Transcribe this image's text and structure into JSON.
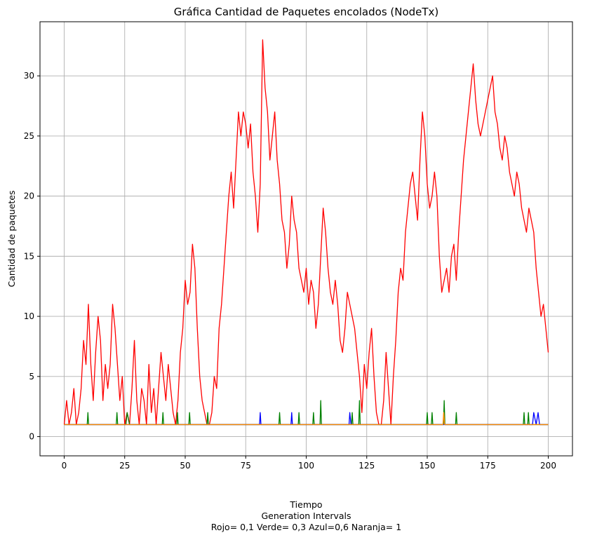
{
  "chart_data": {
    "type": "line",
    "title": "Gráfica Cantidad de Paquetes encolados (NodeTx)",
    "xlabel_lines": [
      "Tiempo",
      "Generation Intervals",
      "Rojo= 0,1  Verde= 0,3  Azul=0,6  Naranja= 1"
    ],
    "ylabel": "Cantidad de paquetes",
    "xlim": [
      -10,
      210
    ],
    "ylim": [
      -1.6,
      34.5
    ],
    "xticks": [
      0,
      25,
      50,
      75,
      100,
      125,
      150,
      175,
      200
    ],
    "yticks": [
      0,
      5,
      10,
      15,
      20,
      25,
      30
    ],
    "grid": true,
    "series": [
      {
        "color": "#ff0000",
        "points": [
          [
            0,
            1
          ],
          [
            1,
            3
          ],
          [
            2,
            1
          ],
          [
            3,
            2
          ],
          [
            4,
            4
          ],
          [
            5,
            1
          ],
          [
            6,
            2
          ],
          [
            7,
            4
          ],
          [
            8,
            8
          ],
          [
            9,
            6
          ],
          [
            10,
            11
          ],
          [
            11,
            6
          ],
          [
            12,
            3
          ],
          [
            13,
            7
          ],
          [
            14,
            10
          ],
          [
            15,
            8
          ],
          [
            16,
            3
          ],
          [
            17,
            6
          ],
          [
            18,
            4
          ],
          [
            19,
            6
          ],
          [
            20,
            11
          ],
          [
            21,
            9
          ],
          [
            22,
            6
          ],
          [
            23,
            3
          ],
          [
            24,
            5
          ],
          [
            25,
            1
          ],
          [
            26,
            2
          ],
          [
            27,
            1
          ],
          [
            28,
            4
          ],
          [
            29,
            8
          ],
          [
            30,
            3
          ],
          [
            31,
            1
          ],
          [
            32,
            4
          ],
          [
            33,
            3
          ],
          [
            34,
            1
          ],
          [
            35,
            6
          ],
          [
            36,
            2
          ],
          [
            37,
            4
          ],
          [
            38,
            1
          ],
          [
            39,
            4
          ],
          [
            40,
            7
          ],
          [
            41,
            5
          ],
          [
            42,
            3
          ],
          [
            43,
            6
          ],
          [
            44,
            4
          ],
          [
            45,
            2
          ],
          [
            46,
            1
          ],
          [
            47,
            3
          ],
          [
            48,
            7
          ],
          [
            49,
            9
          ],
          [
            50,
            13
          ],
          [
            51,
            11
          ],
          [
            52,
            12
          ],
          [
            53,
            16
          ],
          [
            54,
            14
          ],
          [
            55,
            9
          ],
          [
            56,
            5
          ],
          [
            57,
            3
          ],
          [
            58,
            2
          ],
          [
            59,
            1
          ],
          [
            60,
            1
          ],
          [
            61,
            2
          ],
          [
            62,
            5
          ],
          [
            63,
            4
          ],
          [
            64,
            9
          ],
          [
            65,
            11
          ],
          [
            66,
            14
          ],
          [
            67,
            17
          ],
          [
            68,
            20
          ],
          [
            69,
            22
          ],
          [
            70,
            19
          ],
          [
            71,
            23
          ],
          [
            72,
            27
          ],
          [
            73,
            25
          ],
          [
            74,
            27
          ],
          [
            75,
            26
          ],
          [
            76,
            24
          ],
          [
            77,
            26
          ],
          [
            78,
            22
          ],
          [
            79,
            20
          ],
          [
            80,
            17
          ],
          [
            81,
            21
          ],
          [
            82,
            33
          ],
          [
            83,
            29
          ],
          [
            84,
            27
          ],
          [
            85,
            23
          ],
          [
            86,
            25
          ],
          [
            87,
            27
          ],
          [
            88,
            23
          ],
          [
            89,
            21
          ],
          [
            90,
            18
          ],
          [
            91,
            17
          ],
          [
            92,
            14
          ],
          [
            93,
            16
          ],
          [
            94,
            20
          ],
          [
            95,
            18
          ],
          [
            96,
            17
          ],
          [
            97,
            14
          ],
          [
            98,
            13
          ],
          [
            99,
            12
          ],
          [
            100,
            14
          ],
          [
            101,
            11
          ],
          [
            102,
            13
          ],
          [
            103,
            12
          ],
          [
            104,
            9
          ],
          [
            105,
            11
          ],
          [
            106,
            15
          ],
          [
            107,
            19
          ],
          [
            108,
            17
          ],
          [
            109,
            14
          ],
          [
            110,
            12
          ],
          [
            111,
            11
          ],
          [
            112,
            13
          ],
          [
            113,
            11
          ],
          [
            114,
            8
          ],
          [
            115,
            7
          ],
          [
            116,
            9
          ],
          [
            117,
            12
          ],
          [
            118,
            11
          ],
          [
            119,
            10
          ],
          [
            120,
            9
          ],
          [
            121,
            7
          ],
          [
            122,
            5
          ],
          [
            123,
            2
          ],
          [
            124,
            6
          ],
          [
            125,
            4
          ],
          [
            126,
            7
          ],
          [
            127,
            9
          ],
          [
            128,
            5
          ],
          [
            129,
            2
          ],
          [
            130,
            1
          ],
          [
            131,
            1
          ],
          [
            132,
            3
          ],
          [
            133,
            7
          ],
          [
            134,
            4
          ],
          [
            135,
            1
          ],
          [
            136,
            5
          ],
          [
            137,
            8
          ],
          [
            138,
            12
          ],
          [
            139,
            14
          ],
          [
            140,
            13
          ],
          [
            141,
            17
          ],
          [
            142,
            19
          ],
          [
            143,
            21
          ],
          [
            144,
            22
          ],
          [
            145,
            20
          ],
          [
            146,
            18
          ],
          [
            147,
            23
          ],
          [
            148,
            27
          ],
          [
            149,
            25
          ],
          [
            150,
            21
          ],
          [
            151,
            19
          ],
          [
            152,
            20
          ],
          [
            153,
            22
          ],
          [
            154,
            20
          ],
          [
            155,
            15
          ],
          [
            156,
            12
          ],
          [
            157,
            13
          ],
          [
            158,
            14
          ],
          [
            159,
            12
          ],
          [
            160,
            15
          ],
          [
            161,
            16
          ],
          [
            162,
            13
          ],
          [
            163,
            17
          ],
          [
            164,
            20
          ],
          [
            165,
            23
          ],
          [
            166,
            25
          ],
          [
            167,
            27
          ],
          [
            168,
            29
          ],
          [
            169,
            31
          ],
          [
            170,
            28
          ],
          [
            171,
            26
          ],
          [
            172,
            25
          ],
          [
            173,
            26
          ],
          [
            174,
            27
          ],
          [
            175,
            28
          ],
          [
            176,
            29
          ],
          [
            177,
            30
          ],
          [
            178,
            27
          ],
          [
            179,
            26
          ],
          [
            180,
            24
          ],
          [
            181,
            23
          ],
          [
            182,
            25
          ],
          [
            183,
            24
          ],
          [
            184,
            22
          ],
          [
            185,
            21
          ],
          [
            186,
            20
          ],
          [
            187,
            22
          ],
          [
            188,
            21
          ],
          [
            189,
            19
          ],
          [
            190,
            18
          ],
          [
            191,
            17
          ],
          [
            192,
            19
          ],
          [
            193,
            18
          ],
          [
            194,
            17
          ],
          [
            195,
            14
          ],
          [
            196,
            12
          ],
          [
            197,
            10
          ],
          [
            198,
            11
          ],
          [
            199,
            9
          ],
          [
            200,
            7
          ]
        ]
      },
      {
        "color": "#008000",
        "points": [
          [
            0,
            1
          ],
          [
            9.5,
            1
          ],
          [
            9.8,
            2
          ],
          [
            10.1,
            1
          ],
          [
            21.5,
            1
          ],
          [
            21.8,
            2
          ],
          [
            22.1,
            1
          ],
          [
            25.5,
            1
          ],
          [
            26,
            2
          ],
          [
            27,
            1
          ],
          [
            40.5,
            1
          ],
          [
            40.8,
            2
          ],
          [
            41.1,
            1
          ],
          [
            46.5,
            1
          ],
          [
            46.8,
            2
          ],
          [
            47.1,
            1
          ],
          [
            51.5,
            1
          ],
          [
            51.8,
            2
          ],
          [
            52.1,
            1
          ],
          [
            59,
            1
          ],
          [
            59.3,
            2
          ],
          [
            59.6,
            1
          ],
          [
            88.7,
            1
          ],
          [
            89,
            2
          ],
          [
            89.3,
            1
          ],
          [
            96.7,
            1
          ],
          [
            97,
            2
          ],
          [
            97.3,
            1
          ],
          [
            102.7,
            1
          ],
          [
            103,
            2
          ],
          [
            103.3,
            1
          ],
          [
            105.7,
            1
          ],
          [
            106,
            3
          ],
          [
            106.3,
            1
          ],
          [
            118.7,
            1
          ],
          [
            119,
            2
          ],
          [
            119.3,
            1
          ],
          [
            121.7,
            1
          ],
          [
            122,
            3
          ],
          [
            122.3,
            1
          ],
          [
            149.7,
            1
          ],
          [
            150,
            2
          ],
          [
            150.3,
            1
          ],
          [
            151.7,
            1
          ],
          [
            152,
            2
          ],
          [
            152.3,
            1
          ],
          [
            156.7,
            1
          ],
          [
            157,
            3
          ],
          [
            157.3,
            1
          ],
          [
            161.7,
            1
          ],
          [
            162,
            2
          ],
          [
            162.3,
            1
          ],
          [
            189.7,
            1
          ],
          [
            190,
            2
          ],
          [
            190.3,
            1
          ],
          [
            191.5,
            1
          ],
          [
            191.8,
            2
          ],
          [
            192.1,
            1
          ],
          [
            200,
            1
          ]
        ]
      },
      {
        "color": "#0000ff",
        "points": [
          [
            0,
            1
          ],
          [
            80.7,
            1
          ],
          [
            81,
            2
          ],
          [
            81.3,
            1
          ],
          [
            93.7,
            1
          ],
          [
            94,
            2
          ],
          [
            94.3,
            1
          ],
          [
            117.7,
            1
          ],
          [
            118,
            2
          ],
          [
            118.5,
            1
          ],
          [
            193.5,
            1
          ],
          [
            194,
            2
          ],
          [
            195,
            1
          ],
          [
            195.8,
            2
          ],
          [
            196.4,
            1
          ],
          [
            200,
            1
          ]
        ]
      },
      {
        "color": "#ff8c00",
        "points": [
          [
            0,
            1
          ],
          [
            156.5,
            1
          ],
          [
            156.8,
            2
          ],
          [
            157.2,
            1
          ],
          [
            200,
            1
          ]
        ]
      }
    ]
  }
}
